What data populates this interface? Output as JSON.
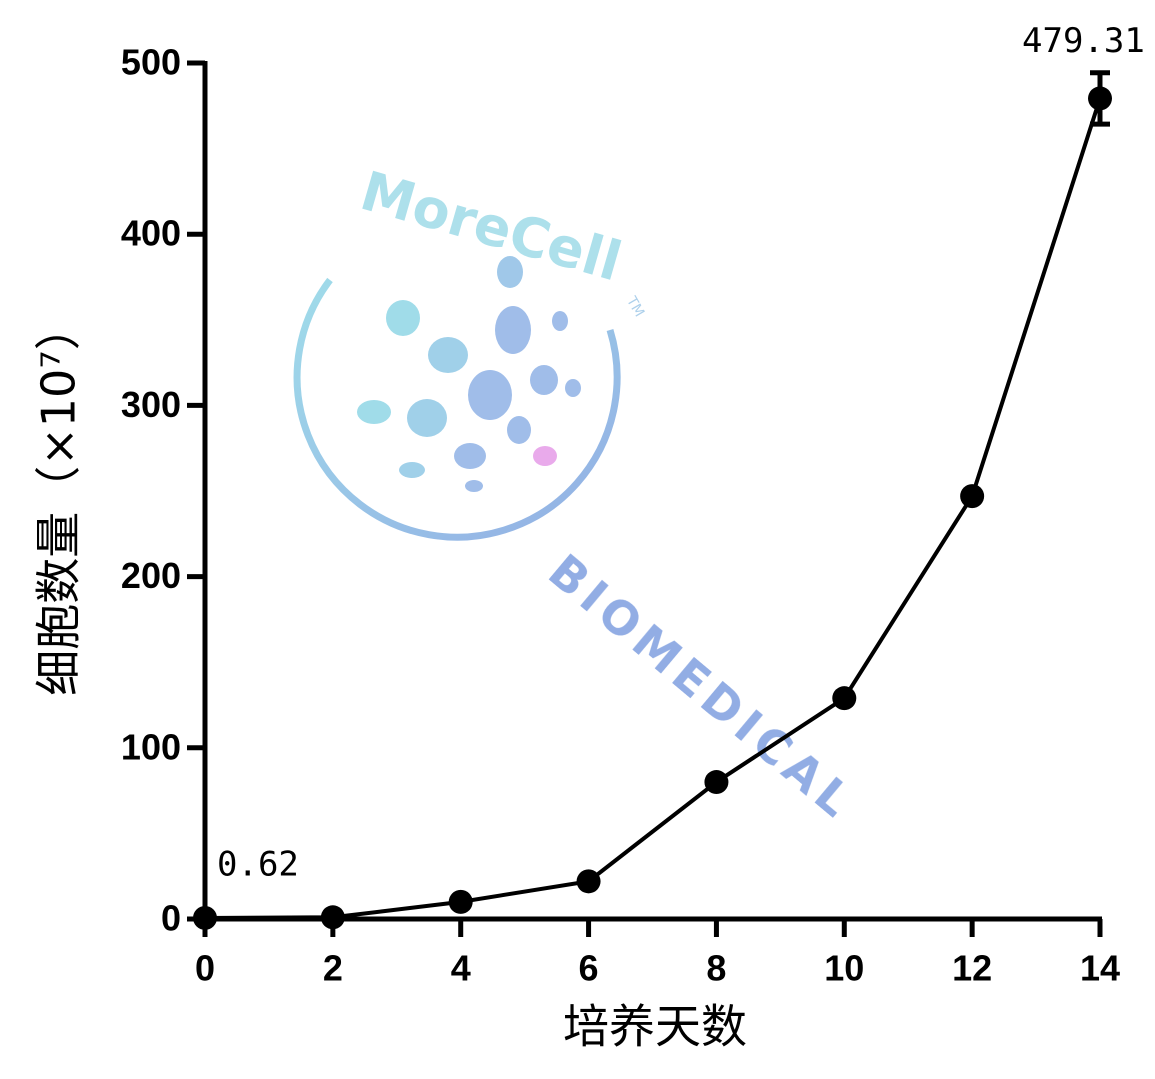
{
  "chart_data": {
    "type": "line",
    "x": [
      0,
      2,
      4,
      6,
      8,
      10,
      12,
      14
    ],
    "series": [
      {
        "color": "#000000",
        "values": [
          0.62,
          1,
          10,
          22,
          80,
          129,
          247,
          479.31
        ],
        "errors": [
          null,
          null,
          null,
          null,
          null,
          null,
          null,
          15
        ],
        "value_labels": [
          "0.62",
          null,
          null,
          null,
          null,
          null,
          null,
          "479.31"
        ]
      }
    ],
    "xlabel": "培养天数",
    "ylabel": "细胞数量（×10⁷）",
    "xlim": [
      0,
      14
    ],
    "xticks": [
      0,
      2,
      4,
      6,
      8,
      10,
      12,
      14
    ],
    "ylim": [
      0,
      500
    ],
    "yticks": [
      0,
      100,
      200,
      300,
      400,
      500
    ],
    "grid": false
  },
  "watermark": {
    "brand": "MoreCell",
    "tm": "TM",
    "sub": "BIOMEDICAL"
  }
}
